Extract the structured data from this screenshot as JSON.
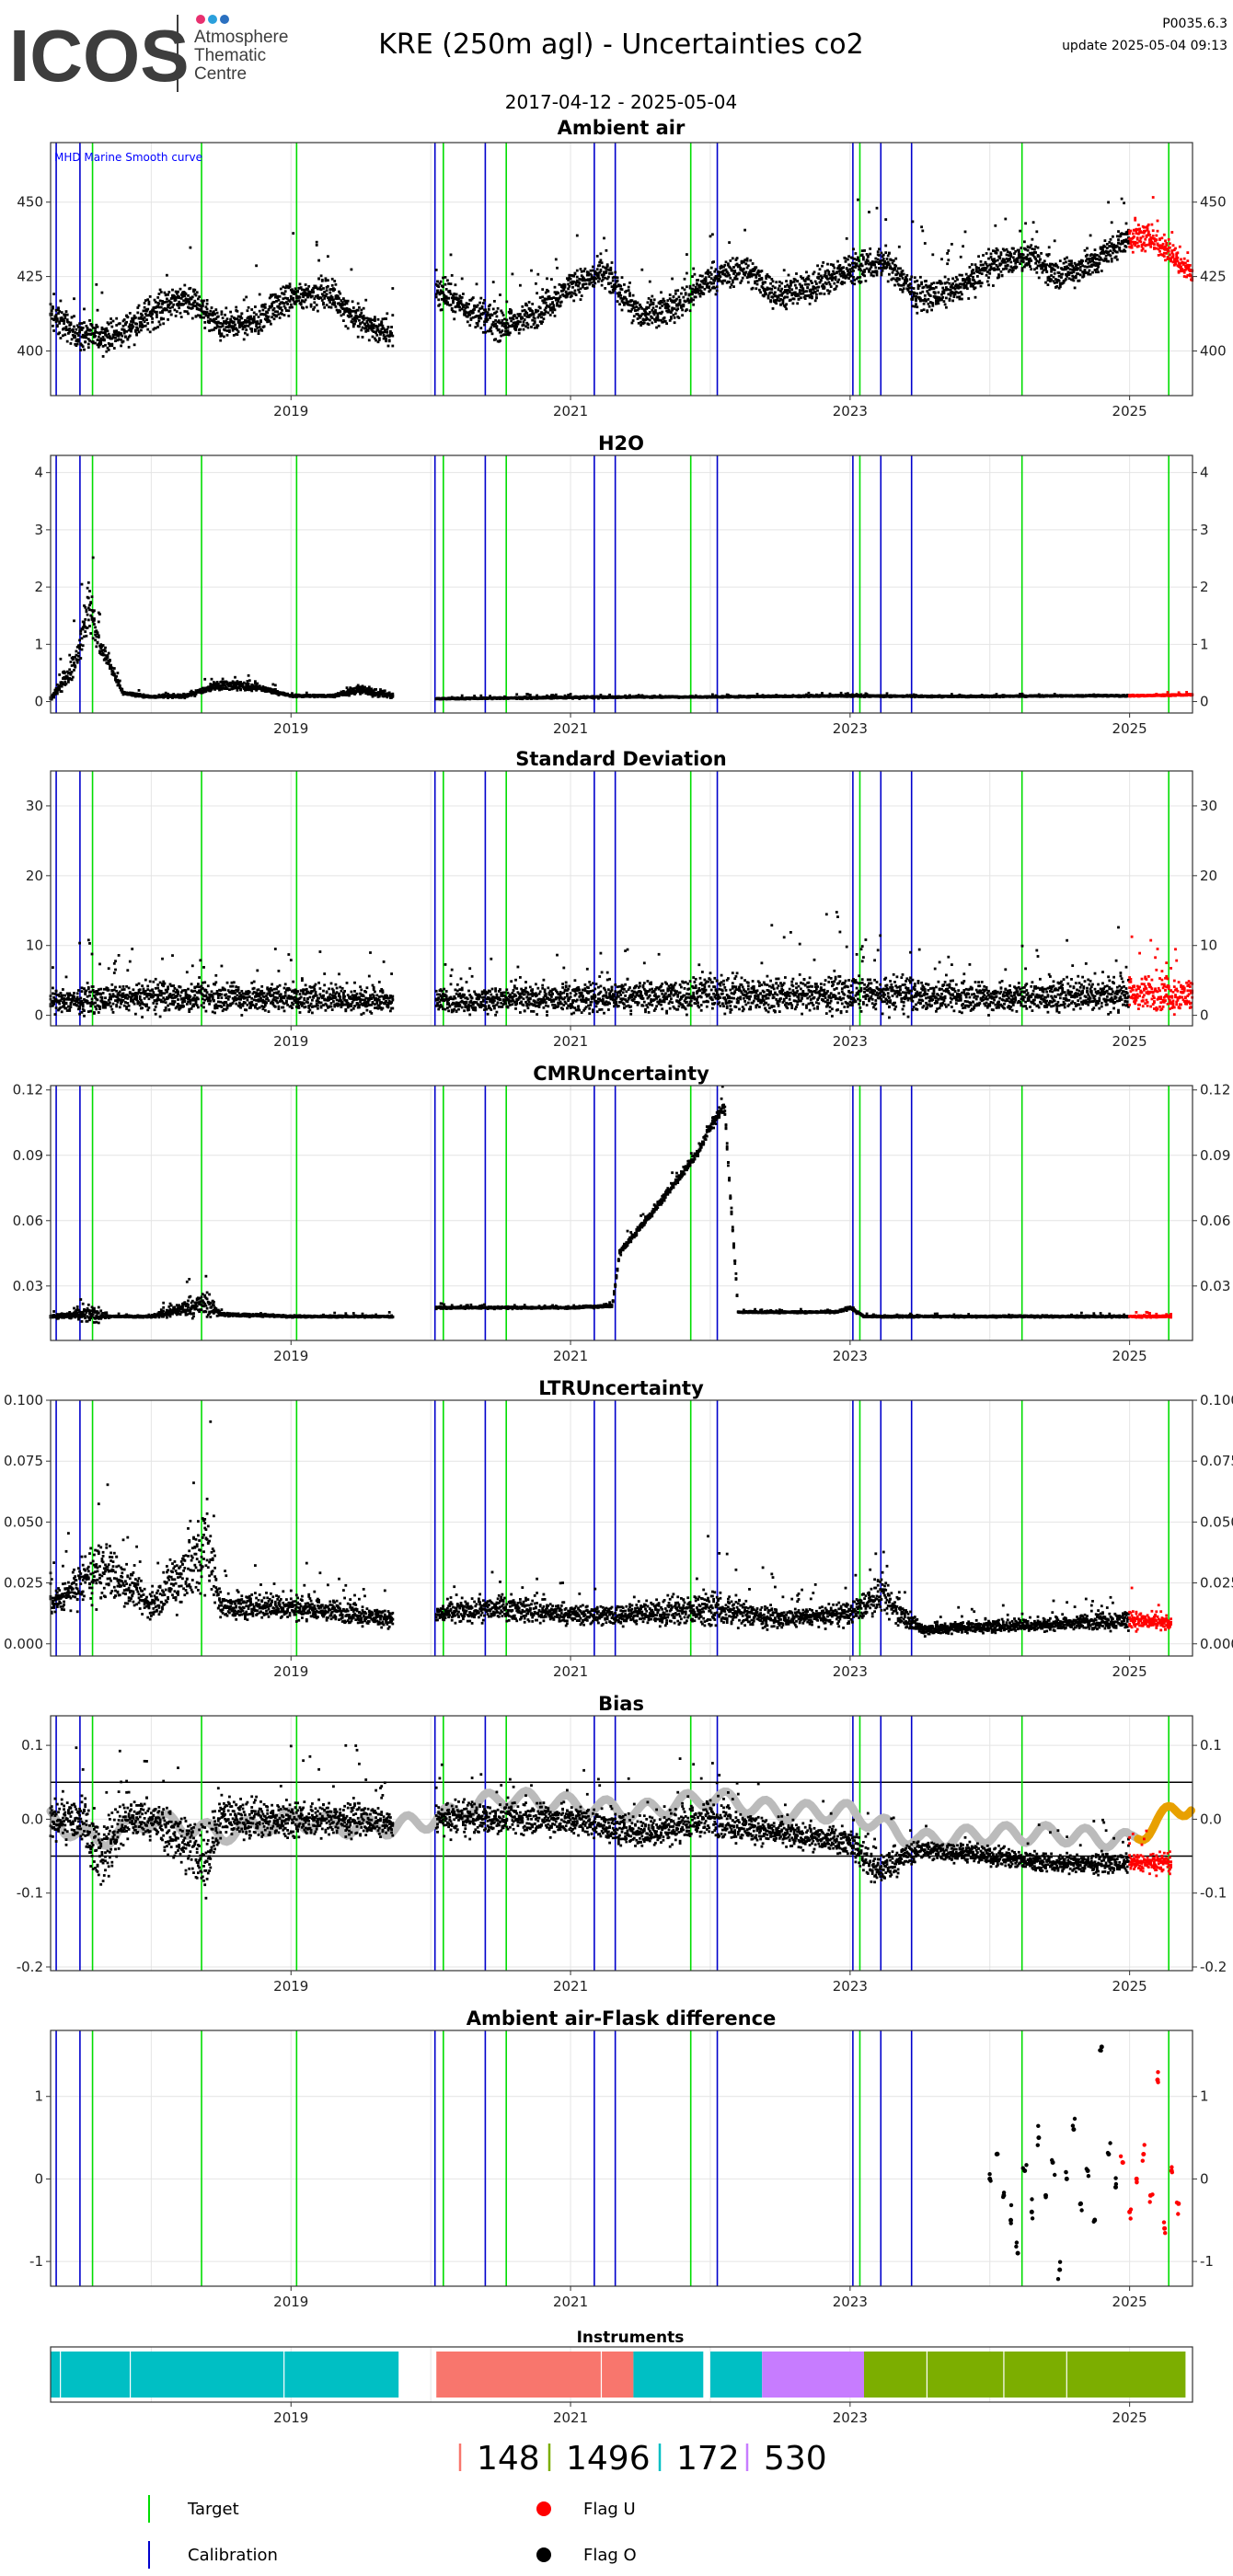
{
  "header": {
    "logo_text": "ICOS",
    "logo_lines": [
      "Atmosphere",
      "Thematic",
      "Centre"
    ],
    "title": "KRE  (250m agl) - Uncertainties co2",
    "date_range": "2017-04-12 - 2025-05-04",
    "version": "P0035.6.3",
    "update": "update  2025-05-04 09:13"
  },
  "colors": {
    "measurement": "#000000",
    "flag_u": "#ff0000",
    "target": "#00dd00",
    "calibration": "#0000cc",
    "mhd_curve": "#bbbbbb",
    "mhd_curve_recent": "#e8a000",
    "grid": "#e4e4e4",
    "instrument_148": "#f8766d",
    "instrument_1496": "#7cae00",
    "instrument_172": "#00bfc4",
    "instrument_530": "#c77cff"
  },
  "chart_data": [
    {
      "id": "ambient",
      "type": "scatter",
      "title": "Ambient air",
      "annotation": "MHD Marine Smooth curve",
      "ylim": [
        385,
        470
      ],
      "yticks": [
        400,
        425,
        450
      ],
      "ytick_labels": [
        "400",
        "425",
        "450"
      ],
      "xticks": [
        2019,
        2021,
        2023,
        2025
      ],
      "xlim": [
        2017.28,
        2025.45
      ],
      "flag_u_from": 2025.0,
      "gaps": [
        [
          2019.73,
          2020.04
        ]
      ],
      "series": [
        {
          "x": [
            2017.28,
            2017.5,
            2017.75,
            2018.0,
            2018.25,
            2018.5,
            2018.75,
            2019.0,
            2019.25,
            2019.5,
            2019.73,
            2020.04,
            2020.25,
            2020.5,
            2020.75,
            2021.0,
            2021.25,
            2021.5,
            2021.75,
            2022.0,
            2022.25,
            2022.5,
            2022.75,
            2023.0,
            2023.25,
            2023.5,
            2023.75,
            2024.0,
            2024.25,
            2024.5,
            2024.75,
            2025.0,
            2025.15,
            2025.3,
            2025.45
          ],
          "y": [
            412,
            405,
            405,
            413,
            418,
            408,
            410,
            418,
            420,
            410,
            405,
            420,
            415,
            408,
            412,
            422,
            426,
            412,
            415,
            424,
            428,
            418,
            422,
            428,
            430,
            418,
            420,
            428,
            432,
            425,
            430,
            438,
            438,
            432,
            426
          ],
          "spread": [
            12,
            12,
            12,
            14,
            12,
            12,
            12,
            12,
            12,
            12,
            12,
            12,
            12,
            12,
            12,
            12,
            12,
            12,
            12,
            12,
            12,
            12,
            12,
            14,
            12,
            12,
            12,
            12,
            12,
            12,
            12,
            12,
            10,
            10,
            10
          ]
        }
      ],
      "targets": [
        2017.58,
        2018.36,
        2019.04,
        2020.09,
        2020.54,
        2021.86,
        2023.07,
        2024.23,
        2025.28
      ],
      "calibrations": [
        2017.32,
        2017.49,
        2020.03,
        2020.39,
        2021.17,
        2021.32,
        2022.05,
        2023.02,
        2023.22,
        2023.44
      ]
    },
    {
      "id": "h2o",
      "type": "scatter",
      "title": "H2O",
      "ylim": [
        -0.2,
        4.3
      ],
      "yticks": [
        0,
        1,
        2,
        3,
        4
      ],
      "ytick_labels": [
        "0",
        "1",
        "2",
        "3",
        "4"
      ],
      "xticks": [
        2019,
        2021,
        2023,
        2025
      ],
      "xlim": [
        2017.28,
        2025.45
      ],
      "flag_u_from": 2025.0,
      "gaps": [
        [
          2019.73,
          2020.04
        ]
      ],
      "series": [
        {
          "x": [
            2017.28,
            2017.45,
            2017.55,
            2017.65,
            2017.8,
            2018.0,
            2018.25,
            2018.5,
            2018.75,
            2019.0,
            2019.3,
            2019.5,
            2019.73,
            2020.04,
            2020.5,
            2021.0,
            2021.5,
            2022.0,
            2022.5,
            2023.0,
            2023.5,
            2024.0,
            2024.5,
            2025.0,
            2025.45
          ],
          "y": [
            0.05,
            0.6,
            1.6,
            0.9,
            0.15,
            0.08,
            0.1,
            0.3,
            0.25,
            0.1,
            0.1,
            0.2,
            0.1,
            0.05,
            0.06,
            0.07,
            0.08,
            0.08,
            0.09,
            0.1,
            0.09,
            0.09,
            0.1,
            0.1,
            0.12
          ],
          "spread": [
            0.05,
            0.6,
            1.2,
            0.3,
            0.08,
            0.05,
            0.08,
            0.2,
            0.15,
            0.05,
            0.05,
            0.2,
            0.1,
            0.03,
            0.03,
            0.04,
            0.03,
            0.03,
            0.03,
            0.04,
            0.03,
            0.03,
            0.03,
            0.03,
            0.03
          ]
        }
      ],
      "targets": [
        2017.58,
        2018.36,
        2019.04,
        2020.09,
        2020.54,
        2021.86,
        2023.07,
        2024.23,
        2025.28
      ],
      "calibrations": [
        2017.32,
        2017.49,
        2020.03,
        2020.39,
        2021.17,
        2021.32,
        2022.05,
        2023.02,
        2023.22,
        2023.44
      ]
    },
    {
      "id": "stddev",
      "type": "scatter",
      "title": "Standard Deviation",
      "ylim": [
        -1.5,
        35
      ],
      "yticks": [
        0,
        10,
        20,
        30
      ],
      "ytick_labels": [
        "0",
        "10",
        "20",
        "30"
      ],
      "xticks": [
        2019,
        2021,
        2023,
        2025
      ],
      "xlim": [
        2017.28,
        2025.45
      ],
      "flag_u_from": 2025.0,
      "gaps": [
        [
          2019.73,
          2020.04
        ]
      ],
      "series": [
        {
          "x": [
            2017.28,
            2018.0,
            2019.0,
            2019.73,
            2020.04,
            2021.0,
            2022.0,
            2023.0,
            2024.0,
            2025.0,
            2025.45
          ],
          "y": [
            2,
            2.5,
            2.5,
            2,
            2,
            2.5,
            3,
            3,
            2.5,
            3,
            3
          ],
          "spread": [
            4,
            5,
            5,
            4,
            4,
            5,
            6,
            6,
            5,
            6,
            6
          ]
        }
      ],
      "targets": [
        2017.58,
        2018.36,
        2019.04,
        2020.09,
        2020.54,
        2021.86,
        2023.07,
        2024.23,
        2025.28
      ],
      "calibrations": [
        2017.32,
        2017.49,
        2020.03,
        2020.39,
        2021.17,
        2021.32,
        2022.05,
        2023.02,
        2023.22,
        2023.44
      ]
    },
    {
      "id": "cmr",
      "type": "scatter",
      "title": "CMRUncertainty",
      "ylim": [
        0.005,
        0.122
      ],
      "yticks": [
        0.03,
        0.06,
        0.09,
        0.12
      ],
      "ytick_labels": [
        "0.03",
        "0.06",
        "0.09",
        "0.12"
      ],
      "xticks": [
        2019,
        2021,
        2023,
        2025
      ],
      "xlim": [
        2017.28,
        2025.45
      ],
      "flag_u_from": 2025.0,
      "gaps": [
        [
          2019.73,
          2020.04
        ]
      ],
      "series": [
        {
          "x": [
            2017.28,
            2017.6,
            2017.7,
            2018.0,
            2018.4,
            2018.5,
            2019.0,
            2019.73,
            2020.04,
            2020.5,
            2021.0,
            2021.3,
            2021.35,
            2021.6,
            2021.9,
            2022.0,
            2022.1,
            2022.2,
            2022.5,
            2022.9,
            2023.0,
            2023.1,
            2024.0,
            2025.0,
            2025.3
          ],
          "y": [
            0.016,
            0.017,
            0.016,
            0.016,
            0.022,
            0.017,
            0.016,
            0.016,
            0.02,
            0.02,
            0.02,
            0.021,
            0.045,
            0.065,
            0.09,
            0.103,
            0.113,
            0.018,
            0.018,
            0.018,
            0.02,
            0.016,
            0.016,
            0.016,
            0.016
          ],
          "spread": [
            0.001,
            0.01,
            0.001,
            0.001,
            0.015,
            0.002,
            0.001,
            0.001,
            0.001,
            0.001,
            0.001,
            0.002,
            0.004,
            0.004,
            0.005,
            0.006,
            0.006,
            0.001,
            0.001,
            0.001,
            0.002,
            0.001,
            0.001,
            0.001,
            0.001
          ]
        }
      ],
      "targets": [
        2017.58,
        2018.36,
        2019.04,
        2020.09,
        2020.54,
        2021.86,
        2023.07,
        2024.23,
        2025.28
      ],
      "calibrations": [
        2017.32,
        2017.49,
        2020.03,
        2020.39,
        2021.17,
        2021.32,
        2022.05,
        2023.02,
        2023.22,
        2023.44
      ]
    },
    {
      "id": "ltr",
      "type": "scatter",
      "title": "LTRUncertainty",
      "ylim": [
        -0.005,
        0.1
      ],
      "yticks": [
        0,
        0.025,
        0.05,
        0.075,
        0.1
      ],
      "ytick_labels": [
        "0.000",
        "0.025",
        "0.050",
        "0.075",
        "0.100"
      ],
      "xticks": [
        2019,
        2021,
        2023,
        2025
      ],
      "xlim": [
        2017.28,
        2025.45
      ],
      "flag_u_from": 2025.0,
      "gaps": [
        [
          2019.73,
          2020.04
        ]
      ],
      "series": [
        {
          "x": [
            2017.28,
            2017.5,
            2017.7,
            2018.0,
            2018.4,
            2018.5,
            2019.0,
            2019.5,
            2019.73,
            2020.04,
            2020.5,
            2021.0,
            2021.5,
            2022.0,
            2022.5,
            2023.0,
            2023.2,
            2023.5,
            2024.0,
            2024.5,
            2025.0,
            2025.3
          ],
          "y": [
            0.015,
            0.025,
            0.03,
            0.015,
            0.04,
            0.015,
            0.015,
            0.012,
            0.01,
            0.012,
            0.015,
            0.012,
            0.012,
            0.015,
            0.01,
            0.012,
            0.02,
            0.006,
            0.007,
            0.008,
            0.01,
            0.008
          ],
          "spread": [
            0.012,
            0.02,
            0.03,
            0.012,
            0.05,
            0.012,
            0.012,
            0.01,
            0.008,
            0.01,
            0.012,
            0.01,
            0.01,
            0.018,
            0.008,
            0.01,
            0.02,
            0.006,
            0.006,
            0.006,
            0.01,
            0.006
          ]
        }
      ],
      "targets": [
        2017.58,
        2018.36,
        2019.04,
        2020.09,
        2020.54,
        2021.86,
        2023.07,
        2024.23,
        2025.28
      ],
      "calibrations": [
        2017.32,
        2017.49,
        2020.03,
        2020.39,
        2021.17,
        2021.32,
        2022.05,
        2023.02,
        2023.22,
        2023.44
      ]
    },
    {
      "id": "bias",
      "type": "scatter",
      "title": "Bias",
      "ylim": [
        -0.205,
        0.14
      ],
      "yticks": [
        -0.2,
        -0.1,
        0,
        0.1
      ],
      "ytick_labels": [
        "-0.2",
        "-0.1",
        "0.0",
        "0.1"
      ],
      "hlines": [
        0.05,
        -0.05
      ],
      "xticks": [
        2019,
        2021,
        2023,
        2025
      ],
      "xlim": [
        2017.28,
        2025.45
      ],
      "flag_u_from": 2025.0,
      "gaps": [
        [
          2019.73,
          2020.04
        ]
      ],
      "series": [
        {
          "x": [
            2017.28,
            2017.5,
            2017.65,
            2017.8,
            2018.0,
            2018.4,
            2018.5,
            2019.0,
            2019.5,
            2019.73,
            2020.04,
            2020.5,
            2021.0,
            2021.5,
            2022.0,
            2022.5,
            2023.0,
            2023.2,
            2023.5,
            2024.0,
            2024.5,
            2025.0,
            2025.3
          ],
          "y": [
            0.0,
            0.0,
            -0.05,
            0.0,
            0.0,
            -0.05,
            0.0,
            0.0,
            0.0,
            -0.01,
            0.0,
            0.0,
            0.0,
            -0.02,
            0.0,
            -0.02,
            -0.03,
            -0.07,
            -0.04,
            -0.05,
            -0.06,
            -0.06,
            -0.06
          ],
          "spread": [
            0.06,
            0.08,
            0.1,
            0.08,
            0.06,
            0.12,
            0.06,
            0.06,
            0.05,
            0.04,
            0.05,
            0.05,
            0.05,
            0.05,
            0.06,
            0.04,
            0.04,
            0.06,
            0.03,
            0.03,
            0.03,
            0.03,
            0.03
          ]
        }
      ],
      "smooth_curve": {
        "x": [
          2017.28,
          2017.6,
          2018.0,
          2018.5,
          2019.0,
          2019.4,
          2019.73,
          2020.04,
          2020.5,
          2021.0,
          2021.5,
          2022.0,
          2022.5,
          2023.0,
          2023.5,
          2024.0,
          2024.5,
          2025.0,
          2025.15,
          2025.3,
          2025.45
        ],
        "y": [
          0.0,
          -0.03,
          0.0,
          -0.02,
          0.0,
          -0.01,
          -0.01,
          0.0,
          0.03,
          0.02,
          0.01,
          0.03,
          0.01,
          0.01,
          -0.03,
          -0.02,
          -0.02,
          -0.03,
          -0.01,
          0.01,
          0.02
        ],
        "recent_from": 2025.05
      },
      "targets": [
        2017.58,
        2018.36,
        2019.04,
        2020.09,
        2020.54,
        2021.86,
        2023.07,
        2024.23,
        2025.28
      ],
      "calibrations": [
        2017.32,
        2017.49,
        2020.03,
        2020.39,
        2021.17,
        2021.32,
        2022.05,
        2023.02,
        2023.22,
        2023.44
      ]
    },
    {
      "id": "flask",
      "type": "scatter",
      "title": "Ambient air-Flask difference",
      "ylim": [
        -1.3,
        1.8
      ],
      "yticks": [
        -1,
        0,
        1
      ],
      "ytick_labels": [
        "-1",
        "0",
        "1"
      ],
      "xticks": [
        2019,
        2021,
        2023,
        2025
      ],
      "xlim": [
        2017.28,
        2025.45
      ],
      "flag_u_from": 2024.95,
      "series": [
        {
          "x": [
            2024.0,
            2024.05,
            2024.1,
            2024.15,
            2024.2,
            2024.25,
            2024.3,
            2024.35,
            2024.4,
            2024.45,
            2024.5,
            2024.55,
            2024.6,
            2024.65,
            2024.7,
            2024.75,
            2024.8,
            2024.85,
            2024.9,
            2024.95,
            2025.0,
            2025.05,
            2025.1,
            2025.15,
            2025.2,
            2025.25,
            2025.3,
            2025.35
          ],
          "y": [
            0.0,
            0.3,
            -0.2,
            -0.5,
            -0.9,
            0.1,
            -0.4,
            0.5,
            -0.2,
            0.2,
            -1.1,
            0.0,
            0.6,
            -0.3,
            0.1,
            -0.5,
            1.6,
            0.3,
            -0.1,
            0.2,
            -0.4,
            0.0,
            0.3,
            -0.2,
            1.2,
            -0.6,
            0.1,
            -0.3
          ]
        }
      ],
      "targets": [
        2017.58,
        2018.36,
        2019.04,
        2020.09,
        2020.54,
        2021.86,
        2023.07,
        2024.23,
        2025.28
      ],
      "calibrations": [
        2017.32,
        2017.49,
        2020.03,
        2020.39,
        2021.17,
        2021.32,
        2022.05,
        2023.02,
        2023.22,
        2023.44
      ]
    }
  ],
  "instruments": {
    "title": "Instruments",
    "xticks": [
      2019,
      2021,
      2023,
      2025
    ],
    "xlim": [
      2017.28,
      2025.45
    ],
    "segments": [
      {
        "from": 2017.28,
        "to": 2019.77,
        "id": "172"
      },
      {
        "from": 2020.04,
        "to": 2021.45,
        "id": "148"
      },
      {
        "from": 2021.45,
        "to": 2021.95,
        "id": "172"
      },
      {
        "from": 2022.0,
        "to": 2022.37,
        "id": "172"
      },
      {
        "from": 2022.37,
        "to": 2023.1,
        "id": "530"
      },
      {
        "from": 2023.1,
        "to": 2025.4,
        "id": "1496"
      }
    ],
    "legend": [
      "148",
      "1496",
      "172",
      "530"
    ]
  },
  "legend": {
    "target": "Target",
    "calibration": "Calibration",
    "flag_u": "Flag U",
    "flag_o": "Flag O"
  }
}
